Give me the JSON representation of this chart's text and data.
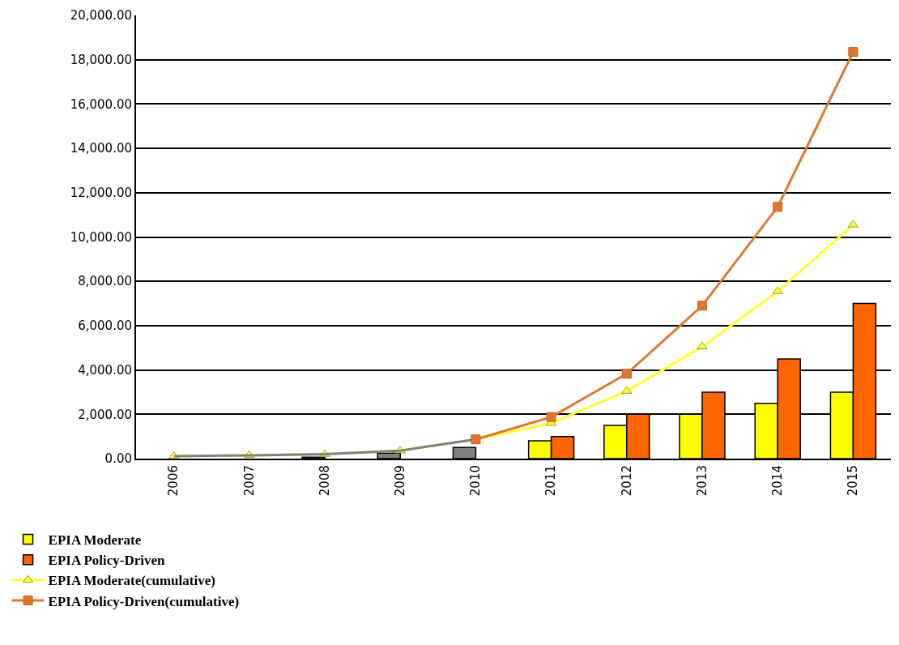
{
  "chart_data": {
    "type": "bar",
    "categories": [
      "2006",
      "2007",
      "2008",
      "2009",
      "2010",
      "2011",
      "2012",
      "2013",
      "2014",
      "2015"
    ],
    "series": [
      {
        "color": "#808080",
        "values": [
          null,
          null,
          60,
          250,
          500,
          null,
          null,
          null,
          null,
          null
        ]
      },
      {
        "name": "EPIA Moderate",
        "color": "#ffff00",
        "values": [
          null,
          null,
          null,
          null,
          null,
          800,
          1500,
          2000,
          2500,
          3000
        ]
      },
      {
        "name": "EPIA Policy-Driven",
        "color": "#ff6600",
        "values": [
          null,
          null,
          null,
          null,
          null,
          1000,
          2000,
          3000,
          4500,
          7000
        ]
      },
      {
        "name": "EPIA Moderate(cumulative)",
        "type": "line",
        "color": "#ffff33",
        "marker": "triangle",
        "values": [
          110,
          150,
          200,
          360,
          870,
          1600,
          3050,
          5050,
          7550,
          10550
        ]
      },
      {
        "type": "line",
        "color": "#808080",
        "marker": "none",
        "values": [
          110,
          150,
          200,
          360,
          870,
          null,
          null,
          null,
          null,
          null
        ]
      },
      {
        "name": "EPIA Policy-Driven(cumulative)",
        "type": "line",
        "color": "#e0782c",
        "marker": "square",
        "values": [
          null,
          null,
          null,
          null,
          870,
          1880,
          3830,
          6900,
          11360,
          18350
        ]
      }
    ],
    "ylim": [
      0,
      20000
    ],
    "yticks": [
      {
        "value": 0,
        "label": "0.00"
      },
      {
        "value": 2000,
        "label": "2,000.00"
      },
      {
        "value": 4000,
        "label": "4,000.00"
      },
      {
        "value": 6000,
        "label": "6,000.00"
      },
      {
        "value": 8000,
        "label": "8,000.00"
      },
      {
        "value": 10000,
        "label": "10,000.00"
      },
      {
        "value": 12000,
        "label": "12,000.00"
      },
      {
        "value": 14000,
        "label": "14,000.00"
      },
      {
        "value": 16000,
        "label": "16,000.00"
      },
      {
        "value": 18000,
        "label": "18,000.00"
      },
      {
        "value": 20000,
        "label": "20,000.00"
      }
    ],
    "grid": "y",
    "legend": "bottom left"
  }
}
